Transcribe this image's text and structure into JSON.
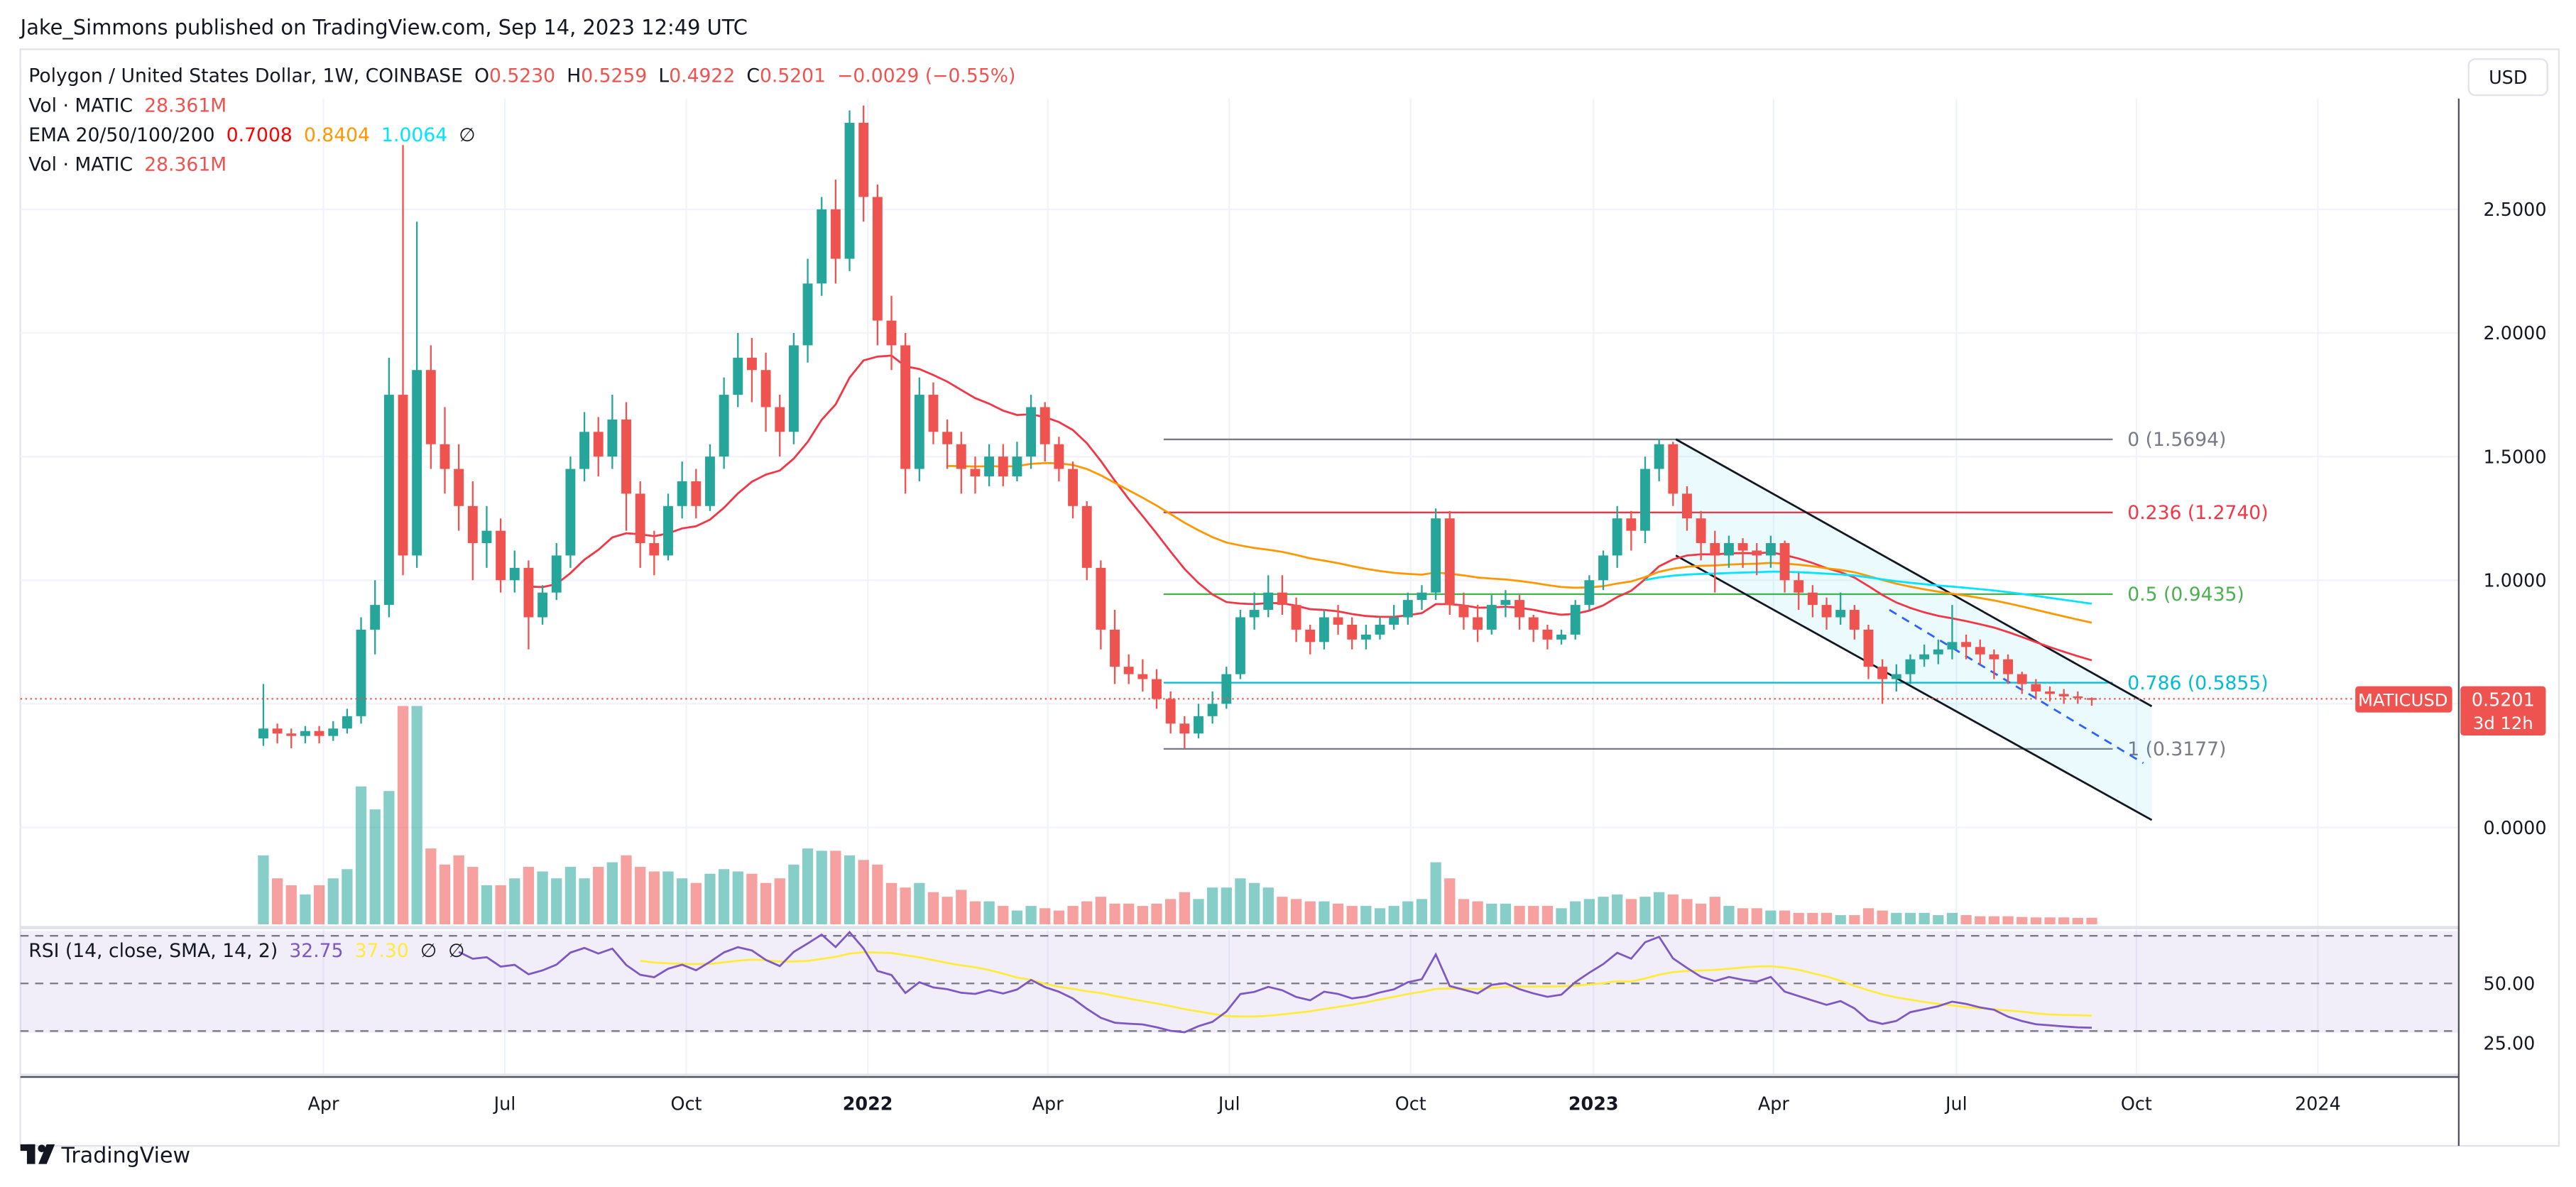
{
  "header": {
    "publisher": "Jake_Simmons published on TradingView.com, Sep 14, 2023 12:49 UTC"
  },
  "legend": {
    "symbol": "Polygon / United States Dollar, 1W, COINBASE",
    "o_label": "O",
    "o": "0.5230",
    "h_label": "H",
    "h": "0.5259",
    "l_label": "L",
    "l": "0.4922",
    "c_label": "C",
    "c": "0.5201",
    "change": "−0.0029 (−0.55%)",
    "vol1_label": "Vol · MATIC",
    "vol1": "28.361M",
    "ema_label": "EMA 20/50/100/200",
    "ema20": "0.7008",
    "ema50": "0.8404",
    "ema100": "1.0064",
    "ema200": "∅",
    "vol2_label": "Vol · MATIC",
    "vol2": "28.361M",
    "rsi_label": "RSI (14, close, SMA, 14, 2)",
    "rsi": "32.75",
    "rsi_sma": "37.30",
    "rsi_na1": "∅",
    "rsi_na2": "∅"
  },
  "currency_button": "USD",
  "price_badge": {
    "symbol": "MATICUSD",
    "price": "0.5201",
    "countdown": "3d 12h"
  },
  "footer": {
    "logo_text": "TradingView"
  },
  "colors": {
    "up": "#26a69a",
    "down": "#ef5350",
    "ema20": "#f23645",
    "ema50": "#ff9800",
    "ema100": "#00e5ff",
    "rsi": "#7e57c2",
    "rsi_sma": "#ffeb3b"
  },
  "chart_data": {
    "type": "candlestick",
    "title": "Polygon / United States Dollar, 1W, COINBASE",
    "x_unit": "week index (0 = first week of Mar 2021)",
    "price_ticks": [
      {
        "v": 2.5,
        "label": "2.5000"
      },
      {
        "v": 2.0,
        "label": "2.0000"
      },
      {
        "v": 1.5,
        "label": "1.5000"
      },
      {
        "v": 1.0,
        "label": "1.0000"
      },
      {
        "v": 0.0,
        "label": "0.0000"
      }
    ],
    "rsi_ticks": [
      {
        "v": 50,
        "label": "50.00"
      },
      {
        "v": 25,
        "label": "25.00"
      }
    ],
    "time_ticks": [
      {
        "w": 4.3,
        "label": "Apr",
        "bold": false
      },
      {
        "w": 17.3,
        "label": "Jul",
        "bold": false
      },
      {
        "w": 30.3,
        "label": "Oct",
        "bold": false
      },
      {
        "w": 43.3,
        "label": "2022",
        "bold": true
      },
      {
        "w": 56.2,
        "label": "Apr",
        "bold": false
      },
      {
        "w": 69.2,
        "label": "Jul",
        "bold": false
      },
      {
        "w": 82.2,
        "label": "Oct",
        "bold": false
      },
      {
        "w": 95.3,
        "label": "2023",
        "bold": true
      },
      {
        "w": 108.2,
        "label": "Apr",
        "bold": false
      },
      {
        "w": 121.3,
        "label": "Jul",
        "bold": false
      },
      {
        "w": 134.2,
        "label": "Oct",
        "bold": false
      },
      {
        "w": 147.2,
        "label": "2024",
        "bold": false
      }
    ],
    "first_open": 0.36,
    "close": [
      0.4,
      0.38,
      0.37,
      0.39,
      0.37,
      0.4,
      0.45,
      0.8,
      0.9,
      1.75,
      1.1,
      1.85,
      1.55,
      1.45,
      1.3,
      1.15,
      1.2,
      1.0,
      1.05,
      0.85,
      0.95,
      1.1,
      1.45,
      1.6,
      1.5,
      1.65,
      1.35,
      1.15,
      1.1,
      1.3,
      1.4,
      1.3,
      1.5,
      1.75,
      1.9,
      1.85,
      1.7,
      1.6,
      1.95,
      2.2,
      2.5,
      2.3,
      2.85,
      2.55,
      2.05,
      1.95,
      1.45,
      1.75,
      1.6,
      1.55,
      1.45,
      1.42,
      1.5,
      1.42,
      1.5,
      1.7,
      1.55,
      1.45,
      1.3,
      1.05,
      0.8,
      0.65,
      0.62,
      0.6,
      0.52,
      0.42,
      0.38,
      0.45,
      0.5,
      0.62,
      0.85,
      0.88,
      0.95,
      0.9,
      0.8,
      0.75,
      0.85,
      0.82,
      0.76,
      0.78,
      0.82,
      0.85,
      0.92,
      0.95,
      1.25,
      0.9,
      0.85,
      0.8,
      0.9,
      0.92,
      0.85,
      0.8,
      0.76,
      0.78,
      0.9,
      1.0,
      1.1,
      1.25,
      1.2,
      1.45,
      1.55,
      1.35,
      1.25,
      1.15,
      1.1,
      1.15,
      1.12,
      1.1,
      1.15,
      1.0,
      0.95,
      0.9,
      0.85,
      0.88,
      0.8,
      0.65,
      0.6,
      0.62,
      0.68,
      0.7,
      0.72,
      0.75,
      0.73,
      0.7,
      0.68,
      0.62,
      0.58,
      0.55,
      0.54,
      0.53,
      0.523,
      0.5201
    ],
    "high": [
      0.58,
      0.42,
      0.4,
      0.41,
      0.41,
      0.43,
      0.48,
      0.85,
      1.0,
      1.9,
      2.76,
      2.45,
      1.95,
      1.7,
      1.55,
      1.4,
      1.3,
      1.25,
      1.12,
      1.08,
      0.98,
      1.15,
      1.5,
      1.68,
      1.66,
      1.75,
      1.72,
      1.4,
      1.2,
      1.35,
      1.48,
      1.45,
      1.55,
      1.82,
      2.0,
      1.98,
      1.92,
      1.75,
      2.0,
      2.3,
      2.55,
      2.62,
      2.9,
      2.92,
      2.6,
      2.15,
      2.0,
      1.82,
      1.8,
      1.65,
      1.6,
      1.5,
      1.55,
      1.55,
      1.56,
      1.75,
      1.72,
      1.58,
      1.48,
      1.32,
      1.08,
      0.88,
      0.7,
      0.68,
      0.64,
      0.55,
      0.45,
      0.5,
      0.55,
      0.65,
      0.88,
      0.95,
      1.02,
      1.02,
      0.93,
      0.82,
      0.88,
      0.9,
      0.85,
      0.82,
      0.85,
      0.9,
      0.95,
      0.98,
      1.29,
      1.28,
      0.95,
      0.9,
      0.94,
      0.96,
      0.94,
      0.86,
      0.82,
      0.8,
      0.92,
      1.02,
      1.12,
      1.3,
      1.28,
      1.5,
      1.57,
      1.56,
      1.38,
      1.28,
      1.2,
      1.18,
      1.17,
      1.15,
      1.18,
      1.16,
      1.03,
      0.98,
      0.93,
      0.95,
      0.9,
      0.82,
      0.68,
      0.66,
      0.7,
      0.74,
      0.76,
      0.9,
      0.78,
      0.76,
      0.72,
      0.7,
      0.63,
      0.6,
      0.57,
      0.56,
      0.55,
      0.5259
    ],
    "low": [
      0.33,
      0.34,
      0.32,
      0.34,
      0.34,
      0.35,
      0.38,
      0.42,
      0.7,
      0.85,
      1.02,
      1.05,
      1.45,
      1.35,
      1.2,
      1.0,
      1.05,
      0.95,
      0.95,
      0.72,
      0.82,
      0.92,
      1.05,
      1.4,
      1.42,
      1.45,
      1.2,
      1.05,
      1.02,
      1.08,
      1.25,
      1.25,
      1.28,
      1.45,
      1.7,
      1.72,
      1.6,
      1.5,
      1.55,
      1.88,
      2.15,
      2.2,
      2.25,
      2.45,
      1.95,
      1.85,
      1.35,
      1.4,
      1.55,
      1.45,
      1.35,
      1.35,
      1.38,
      1.38,
      1.4,
      1.45,
      1.48,
      1.4,
      1.25,
      1.0,
      0.72,
      0.58,
      0.58,
      0.55,
      0.48,
      0.38,
      0.32,
      0.36,
      0.42,
      0.48,
      0.6,
      0.8,
      0.85,
      0.86,
      0.75,
      0.7,
      0.72,
      0.78,
      0.72,
      0.72,
      0.76,
      0.8,
      0.82,
      0.88,
      0.92,
      0.86,
      0.8,
      0.75,
      0.78,
      0.85,
      0.8,
      0.75,
      0.72,
      0.74,
      0.76,
      0.88,
      0.96,
      1.05,
      1.12,
      1.15,
      1.4,
      1.3,
      1.2,
      1.08,
      0.95,
      1.05,
      1.05,
      1.02,
      1.05,
      0.95,
      0.88,
      0.85,
      0.8,
      0.82,
      0.76,
      0.6,
      0.5,
      0.55,
      0.58,
      0.65,
      0.66,
      0.68,
      0.68,
      0.66,
      0.6,
      0.58,
      0.54,
      0.52,
      0.51,
      0.5,
      0.5,
      0.4922
    ],
    "volume_m": [
      300,
      200,
      170,
      130,
      170,
      200,
      240,
      600,
      500,
      580,
      950,
      950,
      330,
      260,
      300,
      250,
      170,
      170,
      200,
      250,
      230,
      200,
      250,
      200,
      250,
      270,
      300,
      250,
      230,
      230,
      200,
      180,
      220,
      240,
      230,
      220,
      180,
      200,
      260,
      330,
      320,
      320,
      300,
      280,
      260,
      180,
      160,
      180,
      140,
      120,
      150,
      100,
      100,
      80,
      60,
      80,
      70,
      60,
      80,
      100,
      120,
      90,
      90,
      80,
      90,
      110,
      140,
      110,
      160,
      160,
      200,
      180,
      160,
      120,
      110,
      100,
      100,
      90,
      80,
      80,
      70,
      80,
      100,
      110,
      270,
      200,
      110,
      100,
      90,
      90,
      80,
      80,
      80,
      70,
      100,
      110,
      120,
      130,
      110,
      120,
      140,
      130,
      110,
      90,
      120,
      80,
      70,
      70,
      60,
      60,
      50,
      50,
      50,
      40,
      40,
      70,
      60,
      50,
      50,
      50,
      40,
      50,
      40,
      35,
      35,
      35,
      32,
      30,
      30,
      30,
      28,
      28.361
    ],
    "ema_periods": [
      20,
      50,
      100
    ],
    "fib": {
      "start_w": 64.5,
      "end_w": 132.5,
      "levels": [
        {
          "ratio": "0",
          "price": 1.5694,
          "label": "0 (1.5694)",
          "color": "#787b86"
        },
        {
          "ratio": "0.236",
          "price": 1.274,
          "label": "0.236 (1.2740)",
          "color": "#f23645"
        },
        {
          "ratio": "0.5",
          "price": 0.9435,
          "label": "0.5 (0.9435)",
          "color": "#4caf50"
        },
        {
          "ratio": "0.786",
          "price": 0.5855,
          "label": "0.786 (0.5855)",
          "color": "#00bcd4"
        },
        {
          "ratio": "1",
          "price": 0.3177,
          "label": "1 (0.3177)",
          "color": "#787b86"
        }
      ]
    },
    "channel": {
      "upper": [
        [
          101.2,
          1.57
        ],
        [
          135.3,
          0.49
        ]
      ],
      "lower": [
        [
          101.2,
          1.1
        ],
        [
          135.3,
          0.03
        ]
      ],
      "dashed": [
        [
          116.5,
          0.88
        ],
        [
          134.7,
          0.26
        ]
      ]
    },
    "current_price": 0.5201,
    "rsi_levels": [
      70,
      50,
      30
    ]
  }
}
